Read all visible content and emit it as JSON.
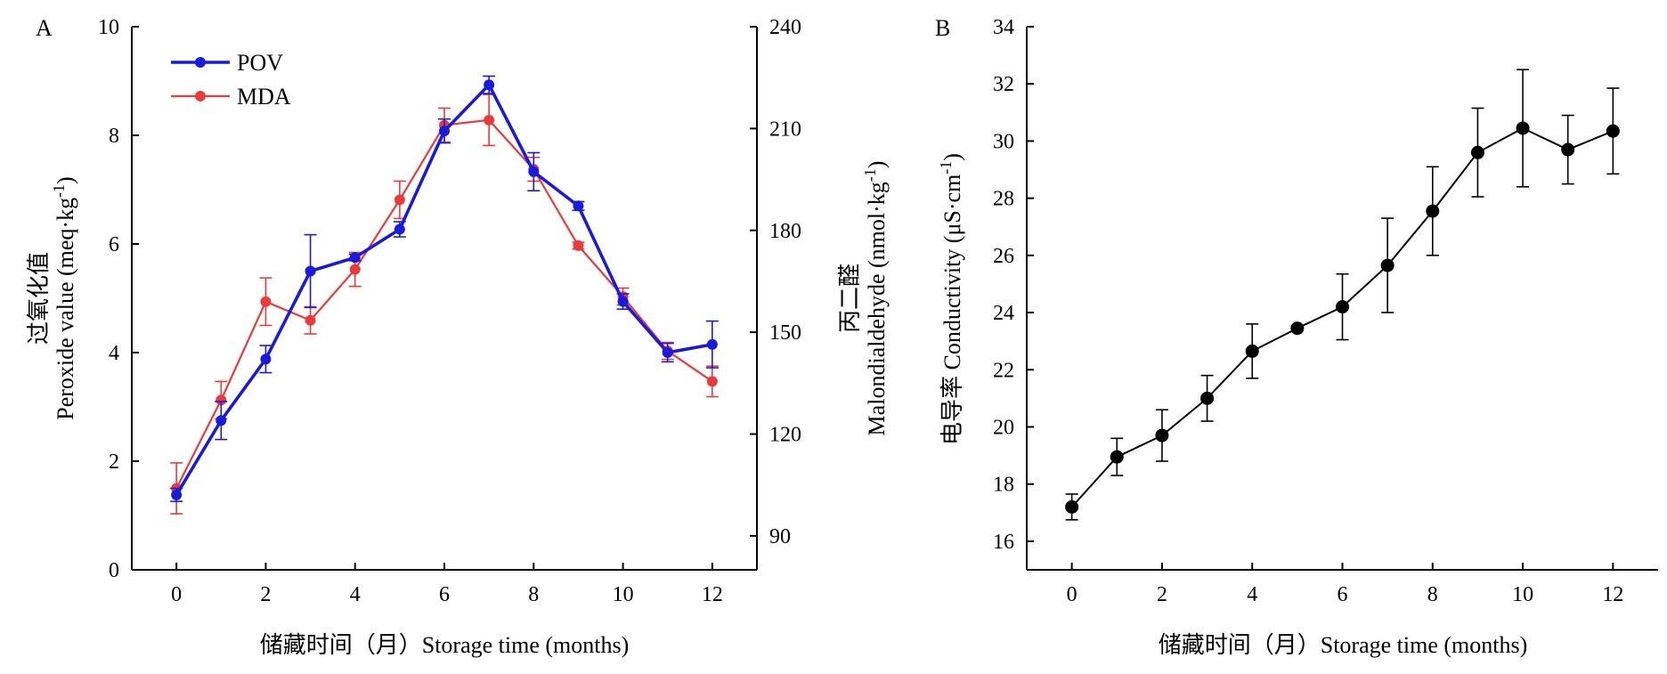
{
  "chart_data": [
    {
      "panel": "A",
      "type": "line",
      "xlabel": "储藏时间（月）Storage time (months)",
      "ylabel": [
        "过氧化值",
        "Peroxide value (meq·kg",
        "-1",
        ")"
      ],
      "y2label": [
        "丙二醛",
        "Malondialdehyde (nmol·kg",
        "-1",
        ")"
      ],
      "x": [
        0,
        1,
        2,
        3,
        4,
        5,
        6,
        7,
        8,
        9,
        10,
        11,
        12
      ],
      "xlim": [
        -1,
        13
      ],
      "xticks": [
        0,
        2,
        4,
        6,
        8,
        10,
        12
      ],
      "ylim": [
        0,
        10
      ],
      "yticks": [
        0,
        2,
        4,
        6,
        8,
        10
      ],
      "y2lim": [
        80,
        240
      ],
      "y2ticks": [
        90,
        120,
        150,
        180,
        210,
        240
      ],
      "legend_position": "top-left",
      "series": [
        {
          "name": "POV",
          "axis": "left",
          "color": "#1a1adb",
          "values": [
            1.38,
            2.75,
            3.88,
            5.5,
            5.75,
            6.27,
            8.08,
            8.93,
            7.33,
            6.7,
            4.94,
            4.0,
            4.15
          ],
          "errors": [
            0.12,
            0.35,
            0.25,
            0.67,
            0.06,
            0.14,
            0.22,
            0.16,
            0.35,
            0.08,
            0.14,
            0.17,
            0.43
          ]
        },
        {
          "name": "MDA",
          "axis": "right",
          "color": "#e83c3c",
          "values": [
            104.0,
            130.0,
            159.0,
            153.5,
            168.5,
            189.0,
            211.0,
            212.5,
            198.0,
            175.5,
            160.5,
            144.5,
            135.5
          ],
          "errors": [
            7.5,
            5.5,
            7.0,
            4.0,
            5.0,
            5.5,
            5.0,
            7.5,
            3.5,
            1.0,
            2.5,
            2.5,
            4.5
          ]
        }
      ]
    },
    {
      "panel": "B",
      "type": "line",
      "xlabel": "储藏时间（月）Storage time (months)",
      "ylabel": [
        "电导率 Conductivity (μS·cm",
        "-1",
        ")"
      ],
      "x": [
        0,
        1,
        2,
        3,
        4,
        5,
        6,
        7,
        8,
        9,
        10,
        11,
        12
      ],
      "xlim": [
        -1,
        13
      ],
      "xticks": [
        0,
        2,
        4,
        6,
        8,
        10,
        12
      ],
      "ylim": [
        15,
        34
      ],
      "yticks": [
        16,
        18,
        20,
        22,
        24,
        26,
        28,
        30,
        32,
        34
      ],
      "series": [
        {
          "color": "#000000",
          "values": [
            17.2,
            18.95,
            19.7,
            21.0,
            22.65,
            23.45,
            24.2,
            25.65,
            27.55,
            29.6,
            30.45,
            29.7,
            30.35
          ],
          "errors": [
            0.45,
            0.65,
            0.9,
            0.8,
            0.95,
            0.0,
            1.15,
            1.65,
            1.55,
            1.55,
            2.05,
            1.2,
            1.5
          ]
        }
      ]
    }
  ]
}
